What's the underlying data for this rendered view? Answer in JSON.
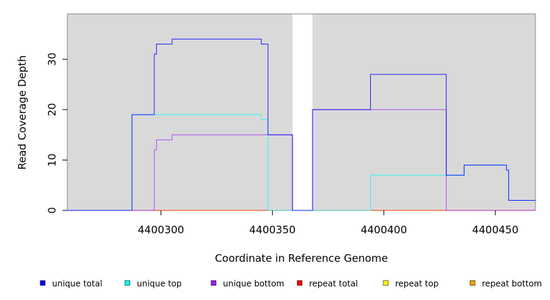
{
  "chart_data": {
    "type": "line",
    "step": true,
    "xlabel": "Coordinate in Reference Genome",
    "ylabel": "Read Coverage Depth",
    "xlim": [
      4400258,
      4400468
    ],
    "ylim": [
      0,
      39
    ],
    "x_ticks": [
      4400300,
      4400350,
      4400400,
      4400450
    ],
    "y_ticks": [
      0,
      10,
      20,
      30
    ],
    "x_tick_labels": [
      "4400300",
      "4400350",
      "4400400",
      "4400450"
    ],
    "y_tick_labels": [
      "0",
      "10",
      "20",
      "30"
    ],
    "background_color": "#d9d9d9",
    "gap_regions": [
      [
        4400359,
        4400368
      ]
    ],
    "series": [
      {
        "name": "unique total",
        "color": "#0000ff",
        "points": [
          [
            4400258,
            0
          ],
          [
            4400287,
            0
          ],
          [
            4400287,
            19
          ],
          [
            4400297,
            19
          ],
          [
            4400297,
            31
          ],
          [
            4400298,
            31
          ],
          [
            4400298,
            33
          ],
          [
            4400305,
            33
          ],
          [
            4400305,
            34
          ],
          [
            4400345,
            34
          ],
          [
            4400345,
            33
          ],
          [
            4400348,
            33
          ],
          [
            4400348,
            15
          ],
          [
            4400359,
            15
          ],
          [
            4400359,
            0
          ],
          [
            4400368,
            0
          ],
          [
            4400368,
            20
          ],
          [
            4400394,
            20
          ],
          [
            4400394,
            27
          ],
          [
            4400428,
            27
          ],
          [
            4400428,
            7
          ],
          [
            4400436,
            7
          ],
          [
            4400436,
            9
          ],
          [
            4400455,
            9
          ],
          [
            4400455,
            8
          ],
          [
            4400456,
            8
          ],
          [
            4400456,
            2
          ],
          [
            4400468,
            2
          ]
        ]
      },
      {
        "name": "unique top",
        "color": "#00ffff",
        "points": [
          [
            4400258,
            0
          ],
          [
            4400287,
            0
          ],
          [
            4400287,
            19
          ],
          [
            4400345,
            19
          ],
          [
            4400345,
            18
          ],
          [
            4400348,
            18
          ],
          [
            4400348,
            0
          ],
          [
            4400394,
            0
          ],
          [
            4400394,
            7
          ],
          [
            4400428,
            7
          ],
          [
            4400428,
            7
          ],
          [
            4400436,
            7
          ],
          [
            4400436,
            9
          ],
          [
            4400455,
            9
          ],
          [
            4400455,
            8
          ],
          [
            4400456,
            8
          ],
          [
            4400456,
            2
          ],
          [
            4400468,
            2
          ]
        ]
      },
      {
        "name": "unique bottom",
        "color": "#a020f0",
        "points": [
          [
            4400258,
            0
          ],
          [
            4400297,
            0
          ],
          [
            4400297,
            12
          ],
          [
            4400298,
            12
          ],
          [
            4400298,
            14
          ],
          [
            4400305,
            14
          ],
          [
            4400305,
            15
          ],
          [
            4400359,
            15
          ],
          [
            4400359,
            0
          ],
          [
            4400368,
            0
          ],
          [
            4400368,
            20
          ],
          [
            4400428,
            20
          ],
          [
            4400428,
            0
          ],
          [
            4400468,
            0
          ]
        ]
      },
      {
        "name": "repeat total",
        "color": "#ff0000",
        "points": [
          [
            4400258,
            0
          ],
          [
            4400468,
            0
          ]
        ]
      },
      {
        "name": "repeat top",
        "color": "#ffff00",
        "points": [
          [
            4400258,
            0
          ],
          [
            4400468,
            0
          ]
        ]
      },
      {
        "name": "repeat bottom",
        "color": "#ffa500",
        "points": [
          [
            4400258,
            0
          ],
          [
            4400468,
            0
          ]
        ]
      }
    ],
    "legend": {
      "position": "bottom",
      "entries": [
        {
          "label": "unique total",
          "color": "#0000ff"
        },
        {
          "label": "unique top",
          "color": "#00ffff"
        },
        {
          "label": "unique bottom",
          "color": "#a020f0"
        },
        {
          "label": "repeat total",
          "color": "#ff0000"
        },
        {
          "label": "repeat top",
          "color": "#ffff00"
        },
        {
          "label": "repeat bottom",
          "color": "#ffa500"
        }
      ]
    }
  }
}
